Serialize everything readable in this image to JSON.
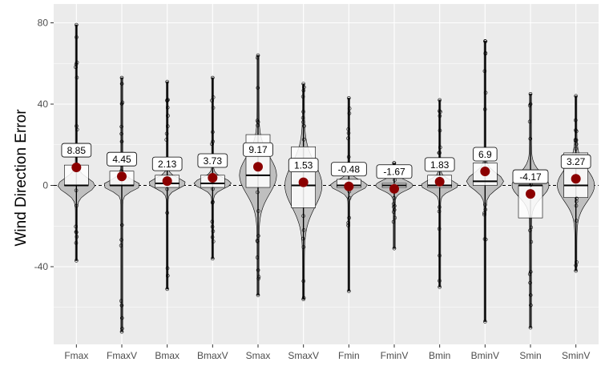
{
  "chart_data": {
    "type": "violin-box",
    "title": "",
    "xlabel": "",
    "ylabel": "Wind Direction Error",
    "ylim": [
      -80,
      80
    ],
    "y_ticks": [
      80,
      40,
      0,
      -40
    ],
    "y_tick_labels": [
      "80",
      "40",
      "0",
      "-40"
    ],
    "reference_line": 0,
    "grid": true,
    "categories": [
      "Fmax",
      "FmaxV",
      "Bmax",
      "BmaxV",
      "Smax",
      "SmaxV",
      "Fmin",
      "FminV",
      "Bmin",
      "BminV",
      "Smin",
      "SminV"
    ],
    "means": [
      8.85,
      4.45,
      2.13,
      3.73,
      9.17,
      1.53,
      -0.48,
      -1.67,
      1.83,
      6.9,
      -4.17,
      3.27
    ],
    "mean_labels": [
      "8.85",
      "4.45",
      "2.13",
      "3.73",
      "9.17",
      "1.53",
      "-0.48",
      "-1.67",
      "1.83",
      "6.9",
      "-4.17",
      "3.27"
    ],
    "medians": [
      0,
      0,
      1,
      1,
      5,
      0,
      0,
      0,
      0,
      2,
      0,
      0
    ],
    "q1": [
      0,
      0,
      -1,
      -1,
      -1,
      -11,
      -1,
      -1,
      -1,
      0,
      -16,
      -6
    ],
    "q3": [
      10,
      7,
      5,
      5,
      25,
      19,
      3,
      1,
      5,
      11,
      0,
      16
    ],
    "min": [
      -37,
      -72,
      -51,
      -36,
      -54,
      -56,
      -52,
      -31,
      -50,
      -67,
      -70,
      -42
    ],
    "max": [
      79,
      53,
      51,
      53,
      64,
      50,
      43,
      11,
      42,
      71,
      45,
      44
    ],
    "colors": {
      "panel_bg": "#ebebeb",
      "grid": "#ffffff",
      "violin_fill": "#bfbfbf",
      "mean_point": "#8b0000",
      "line": "#000000"
    }
  }
}
